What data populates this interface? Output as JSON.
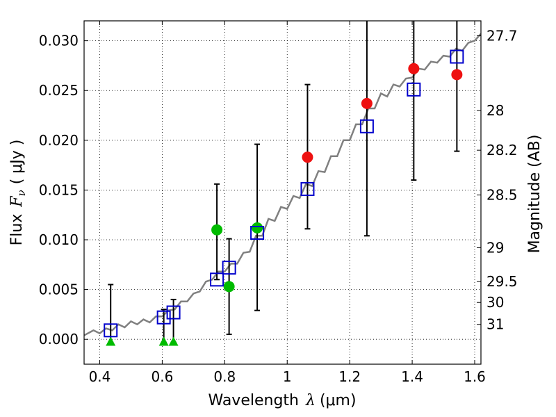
{
  "chart_data": {
    "type": "scatter",
    "xlabel": {
      "text": "Wavelength",
      "symbol": "λ",
      "unit": "(μm)"
    },
    "ylabel": {
      "text": "Flux",
      "symbol": "F",
      "subscript": "ν",
      "unit": "( μJy )"
    },
    "y2label": "Magnitude (AB)",
    "xlim": [
      0.35,
      1.62
    ],
    "ylim": [
      -0.0025,
      0.032
    ],
    "grid": true,
    "x_ticks": [
      {
        "value": 0.4,
        "label": "0.4"
      },
      {
        "value": 0.6,
        "label": "0.6"
      },
      {
        "value": 0.8,
        "label": "0.8"
      },
      {
        "value": 1.0,
        "label": "1"
      },
      {
        "value": 1.2,
        "label": "1.2"
      },
      {
        "value": 1.4,
        "label": "1.4"
      },
      {
        "value": 1.6,
        "label": "1.6"
      }
    ],
    "y_ticks": [
      {
        "value": 0.0,
        "label": "0.000"
      },
      {
        "value": 0.005,
        "label": "0.005"
      },
      {
        "value": 0.01,
        "label": "0.010"
      },
      {
        "value": 0.015,
        "label": "0.015"
      },
      {
        "value": 0.02,
        "label": "0.020"
      },
      {
        "value": 0.025,
        "label": "0.025"
      },
      {
        "value": 0.03,
        "label": "0.030"
      }
    ],
    "y2_ticks": [
      {
        "flux": 0.0305,
        "label": "27.7"
      },
      {
        "flux": 0.023,
        "label": "28"
      },
      {
        "flux": 0.019,
        "label": "28.2"
      },
      {
        "flux": 0.0145,
        "label": "28.5"
      },
      {
        "flux": 0.0092,
        "label": "29"
      },
      {
        "flux": 0.0058,
        "label": "29.5"
      },
      {
        "flux": 0.0037,
        "label": "30"
      },
      {
        "flux": 0.0015,
        "label": "31"
      }
    ],
    "spectrum": {
      "color": "#808080",
      "x": [
        0.35,
        0.38,
        0.4,
        0.42,
        0.44,
        0.46,
        0.48,
        0.5,
        0.52,
        0.54,
        0.56,
        0.58,
        0.6,
        0.62,
        0.64,
        0.66,
        0.68,
        0.7,
        0.72,
        0.74,
        0.76,
        0.78,
        0.8,
        0.82,
        0.84,
        0.86,
        0.88,
        0.9,
        0.92,
        0.94,
        0.96,
        0.98,
        1.0,
        1.02,
        1.04,
        1.06,
        1.08,
        1.1,
        1.12,
        1.14,
        1.16,
        1.18,
        1.2,
        1.22,
        1.24,
        1.26,
        1.28,
        1.3,
        1.32,
        1.34,
        1.36,
        1.38,
        1.4,
        1.42,
        1.44,
        1.46,
        1.48,
        1.5,
        1.52,
        1.54,
        1.56,
        1.58,
        1.6,
        1.62
      ],
      "y": [
        0.0006,
        0.0007,
        0.0008,
        0.0009,
        0.0011,
        0.0013,
        0.0014,
        0.0016,
        0.0017,
        0.0018,
        0.0019,
        0.0021,
        0.0025,
        0.0027,
        0.0032,
        0.0036,
        0.004,
        0.0044,
        0.005,
        0.0056,
        0.0062,
        0.0066,
        0.007,
        0.0074,
        0.0078,
        0.0085,
        0.0092,
        0.01,
        0.0108,
        0.0117,
        0.0123,
        0.0129,
        0.0135,
        0.014,
        0.0146,
        0.0152,
        0.0158,
        0.0165,
        0.0172,
        0.018,
        0.0188,
        0.0196,
        0.0204,
        0.0212,
        0.022,
        0.0228,
        0.0236,
        0.0243,
        0.0248,
        0.0252,
        0.0256,
        0.026,
        0.0265,
        0.027,
        0.0273,
        0.0277,
        0.028,
        0.0283,
        0.0286,
        0.029,
        0.0292,
        0.0296,
        0.0302,
        0.0305
      ]
    },
    "model_points": {
      "color": "#0000cc",
      "marker": "open-square",
      "x": [
        0.435,
        0.605,
        0.636,
        0.775,
        0.814,
        0.904,
        1.065,
        1.255,
        1.405,
        1.543
      ],
      "y": [
        0.0009,
        0.0022,
        0.0027,
        0.006,
        0.0072,
        0.0107,
        0.0151,
        0.0214,
        0.0251,
        0.0284
      ]
    },
    "observed_points": [
      {
        "x": 0.435,
        "y": -0.0003,
        "yerr_low": -0.0003,
        "yerr_high": 0.0055,
        "color": "#00bb00",
        "marker": "triangle-up"
      },
      {
        "x": 0.605,
        "y": -0.0003,
        "yerr_low": -0.0003,
        "yerr_high": 0.003,
        "color": "#00bb00",
        "marker": "triangle-up"
      },
      {
        "x": 0.636,
        "y": -0.0003,
        "yerr_low": -0.0003,
        "yerr_high": 0.004,
        "color": "#00bb00",
        "marker": "triangle-up"
      },
      {
        "x": 0.775,
        "y": 0.011,
        "yerr_low": 0.006,
        "yerr_high": 0.0156,
        "color": "#00bb00",
        "marker": "circle"
      },
      {
        "x": 0.814,
        "y": 0.0053,
        "yerr_low": 0.0005,
        "yerr_high": 0.0101,
        "color": "#00bb00",
        "marker": "circle"
      },
      {
        "x": 0.904,
        "y": 0.0112,
        "yerr_low": 0.0029,
        "yerr_high": 0.0196,
        "color": "#00bb00",
        "marker": "circle"
      },
      {
        "x": 1.065,
        "y": 0.0183,
        "yerr_low": 0.0111,
        "yerr_high": 0.0256,
        "color": "#ee1111",
        "marker": "circle"
      },
      {
        "x": 1.255,
        "y": 0.0237,
        "yerr_low": 0.0104,
        "yerr_high": 0.033,
        "color": "#ee1111",
        "marker": "circle"
      },
      {
        "x": 1.405,
        "y": 0.0272,
        "yerr_low": 0.016,
        "yerr_high": 0.033,
        "color": "#ee1111",
        "marker": "circle"
      },
      {
        "x": 1.543,
        "y": 0.0266,
        "yerr_low": 0.0189,
        "yerr_high": 0.033,
        "color": "#ee1111",
        "marker": "circle"
      }
    ]
  }
}
